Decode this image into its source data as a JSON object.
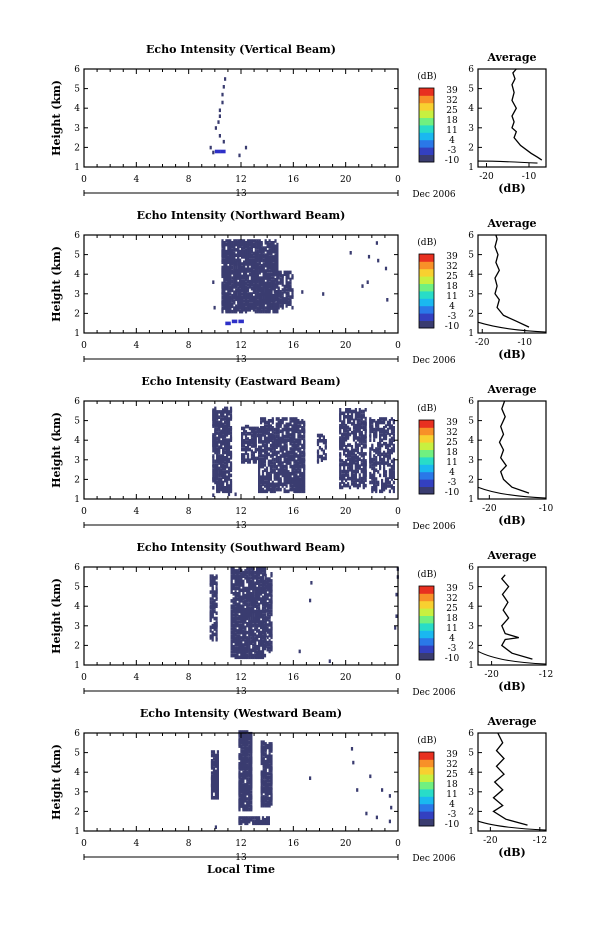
{
  "colors": {
    "echo": "#3a3c70",
    "echo_strong": "#2e30c8",
    "colorbar": [
      "#3a3c70",
      "#3340c0",
      "#2a78e8",
      "#1ab8f0",
      "#28dcc8",
      "#70f080",
      "#c8f040",
      "#f8d030",
      "#f89028",
      "#e83020"
    ]
  },
  "common": {
    "y_ticks": [
      "1",
      "2",
      "3",
      "4",
      "5",
      "6"
    ],
    "x_ticks": [
      "0",
      "4",
      "8",
      "12",
      "16",
      "20",
      "0"
    ],
    "date_mark": "13",
    "date_label": "Dec 2006",
    "ylabel": "Height (km)",
    "xlabel": "Local Time",
    "avg_title": "Average",
    "avg_xlabel": "(dB)",
    "cb_unit": "(dB)",
    "cb_ticks": [
      "39",
      "32",
      "25",
      "18",
      "11",
      "4",
      "-3",
      "-10"
    ]
  },
  "chart_data": [
    {
      "type": "heatmap",
      "title": "Echo Intensity (Vertical Beam)",
      "avg": {
        "xlim": [
          -22,
          -6
        ],
        "xticks": [
          "-20",
          "-10"
        ],
        "profile": [
          [
            -7,
            1.35
          ],
          [
            -8,
            1.5
          ],
          [
            -9.5,
            1.7
          ],
          [
            -12,
            2.1
          ],
          [
            -13.5,
            2.5
          ],
          [
            -13,
            2.8
          ],
          [
            -14,
            3.0
          ],
          [
            -13.5,
            3.3
          ],
          [
            -14,
            3.6
          ],
          [
            -13,
            4.0
          ],
          [
            -14,
            4.4
          ],
          [
            -13.5,
            4.8
          ],
          [
            -14,
            5.2
          ],
          [
            -13.3,
            5.5
          ],
          [
            -13.8,
            5.8
          ],
          [
            -13,
            6.0
          ]
        ],
        "line2": [
          [
            -22,
            1.3
          ],
          [
            -8,
            1.2
          ]
        ]
      },
      "cells": [
        [
          10,
          2.9
        ],
        [
          10.2,
          3.2
        ],
        [
          10.3,
          3.5
        ],
        [
          10.3,
          3.8
        ],
        [
          10.5,
          4.2
        ],
        [
          10.5,
          4.6
        ],
        [
          10.6,
          5.0
        ],
        [
          10.7,
          5.4
        ],
        [
          10.3,
          2.5
        ],
        [
          10.6,
          2.2
        ],
        [
          9.6,
          1.9
        ],
        [
          9.8,
          1.65
        ],
        [
          11.8,
          1.5
        ],
        [
          12.3,
          1.9
        ]
      ],
      "strong": [
        [
          10,
          1.7
        ],
        [
          10.4,
          1.7
        ]
      ]
    },
    {
      "type": "heatmap",
      "title": "Echo Intensity (Northward Beam)",
      "avg": {
        "xlim": [
          -21,
          -5
        ],
        "xticks": [
          "-20",
          "-10"
        ],
        "profile": [
          [
            -9,
            1.3
          ],
          [
            -12,
            1.6
          ],
          [
            -15,
            1.9
          ],
          [
            -16.5,
            2.3
          ],
          [
            -16,
            2.7
          ],
          [
            -17,
            3.0
          ],
          [
            -16.5,
            3.4
          ],
          [
            -17,
            3.8
          ],
          [
            -16,
            4.2
          ],
          [
            -16.8,
            4.6
          ],
          [
            -16.3,
            5.0
          ],
          [
            -17,
            5.4
          ],
          [
            -16.5,
            5.8
          ],
          [
            -16.8,
            6.0
          ]
        ],
        "line2": [
          [
            -21,
            1.55
          ],
          [
            -5,
            1.05
          ]
        ]
      },
      "regions": [
        [
          10.5,
          14.8,
          2.0,
          5.6,
          0.78
        ],
        [
          14.5,
          16.0,
          2.2,
          4.0,
          0.5
        ]
      ],
      "cells": [
        [
          9.8,
          3.5
        ],
        [
          9.9,
          2.2
        ],
        [
          16.6,
          3.0
        ],
        [
          18.2,
          2.9
        ],
        [
          20.3,
          5.0
        ],
        [
          21.6,
          3.5
        ],
        [
          21.7,
          4.8
        ],
        [
          22.3,
          5.5
        ],
        [
          22.4,
          4.6
        ],
        [
          23.0,
          4.2
        ],
        [
          23.1,
          2.6
        ],
        [
          21.2,
          3.3
        ]
      ],
      "strong": [
        [
          10.8,
          1.4
        ],
        [
          11.3,
          1.5
        ],
        [
          11.8,
          1.5
        ]
      ]
    },
    {
      "type": "heatmap",
      "title": "Echo Intensity (Eastward Beam)",
      "avg": {
        "xlim": [
          -22,
          -10
        ],
        "xticks": [
          "-20",
          "-10"
        ],
        "profile": [
          [
            -13,
            1.3
          ],
          [
            -16,
            1.6
          ],
          [
            -17.5,
            2.0
          ],
          [
            -18,
            2.4
          ],
          [
            -17,
            2.7
          ],
          [
            -18,
            3.1
          ],
          [
            -17.5,
            3.5
          ],
          [
            -18.2,
            3.9
          ],
          [
            -17.5,
            4.3
          ],
          [
            -18,
            4.7
          ],
          [
            -17.2,
            5.2
          ],
          [
            -17.8,
            5.6
          ],
          [
            -17.3,
            6.0
          ]
        ],
        "line2": [
          [
            -22,
            1.6
          ],
          [
            -10,
            1.05
          ]
        ]
      },
      "regions": [
        [
          9.8,
          11.3,
          1.3,
          5.6,
          0.7
        ],
        [
          12.0,
          13.3,
          2.8,
          4.6,
          0.5
        ],
        [
          13.3,
          16.8,
          1.3,
          5.0,
          0.65
        ],
        [
          17.8,
          18.5,
          2.8,
          4.2,
          0.35
        ],
        [
          19.5,
          21.5,
          1.5,
          5.5,
          0.55
        ],
        [
          21.8,
          23.6,
          1.3,
          5.0,
          0.45
        ]
      ],
      "cells": [
        [
          9.8,
          1.1
        ],
        [
          11.0,
          1.15
        ],
        [
          11.5,
          1.15
        ]
      ],
      "strong": []
    },
    {
      "type": "heatmap",
      "title": "Echo Intensity (Southward Beam)",
      "avg": {
        "xlim": [
          -22,
          -12
        ],
        "xticks": [
          "-20",
          "-12"
        ],
        "profile": [
          [
            -14,
            1.3
          ],
          [
            -17,
            1.6
          ],
          [
            -18.5,
            2.0
          ],
          [
            -18,
            2.3
          ],
          [
            -16,
            2.4
          ],
          [
            -18,
            2.6
          ],
          [
            -18.5,
            3.0
          ],
          [
            -17.5,
            3.4
          ],
          [
            -18.3,
            3.8
          ],
          [
            -17.6,
            4.2
          ],
          [
            -18.4,
            4.6
          ],
          [
            -17.5,
            5.0
          ],
          [
            -18.5,
            5.4
          ],
          [
            -18,
            5.6
          ]
        ],
        "line2": [
          [
            -22,
            1.7
          ],
          [
            -12,
            1.05
          ]
        ]
      },
      "regions": [
        [
          9.6,
          10.2,
          2.2,
          5.5,
          0.5
        ],
        [
          11.2,
          13.8,
          1.3,
          5.8,
          0.72
        ],
        [
          13.8,
          14.4,
          1.6,
          5.6,
          0.5
        ]
      ],
      "cells": [
        [
          16.4,
          1.6
        ],
        [
          17.3,
          5.1
        ],
        [
          17.2,
          4.2
        ],
        [
          18.7,
          1.1
        ],
        [
          23.8,
          4.5
        ],
        [
          23.9,
          5.4
        ],
        [
          23.8,
          3.4
        ],
        [
          23.7,
          2.8
        ],
        [
          23.9,
          5.8
        ]
      ],
      "strong": []
    },
    {
      "type": "heatmap",
      "title": "Echo Intensity (Westward Beam)",
      "avg": {
        "xlim": [
          -22,
          -11
        ],
        "xticks": [
          "-20",
          "-12"
        ],
        "profile": [
          [
            -14,
            1.3
          ],
          [
            -17.5,
            1.6
          ],
          [
            -19.5,
            2.0
          ],
          [
            -18,
            2.3
          ],
          [
            -19.5,
            2.7
          ],
          [
            -18,
            3.1
          ],
          [
            -19.3,
            3.5
          ],
          [
            -17.8,
            3.9
          ],
          [
            -19,
            4.3
          ],
          [
            -17.8,
            4.7
          ],
          [
            -19,
            5.1
          ],
          [
            -18,
            5.5
          ],
          [
            -18.8,
            6.0
          ]
        ],
        "line2": [
          [
            -22,
            1.5
          ],
          [
            -11,
            1.05
          ]
        ]
      },
      "regions": [
        [
          9.7,
          10.2,
          2.6,
          5.0,
          0.7
        ],
        [
          11.8,
          12.8,
          2.0,
          6.0,
          0.85
        ],
        [
          13.5,
          14.3,
          2.2,
          5.5,
          0.75
        ],
        [
          11.8,
          14.2,
          1.3,
          1.6,
          0.8
        ]
      ],
      "cells": [
        [
          10.0,
          1.1
        ],
        [
          17.2,
          3.6
        ],
        [
          20.4,
          5.1
        ],
        [
          20.8,
          3.0
        ],
        [
          21.8,
          3.7
        ],
        [
          22.7,
          3.0
        ],
        [
          23.4,
          2.1
        ],
        [
          23.3,
          2.7
        ],
        [
          21.5,
          1.8
        ],
        [
          22.3,
          1.6
        ],
        [
          23.3,
          1.4
        ],
        [
          20.5,
          4.4
        ]
      ],
      "strong": []
    }
  ]
}
